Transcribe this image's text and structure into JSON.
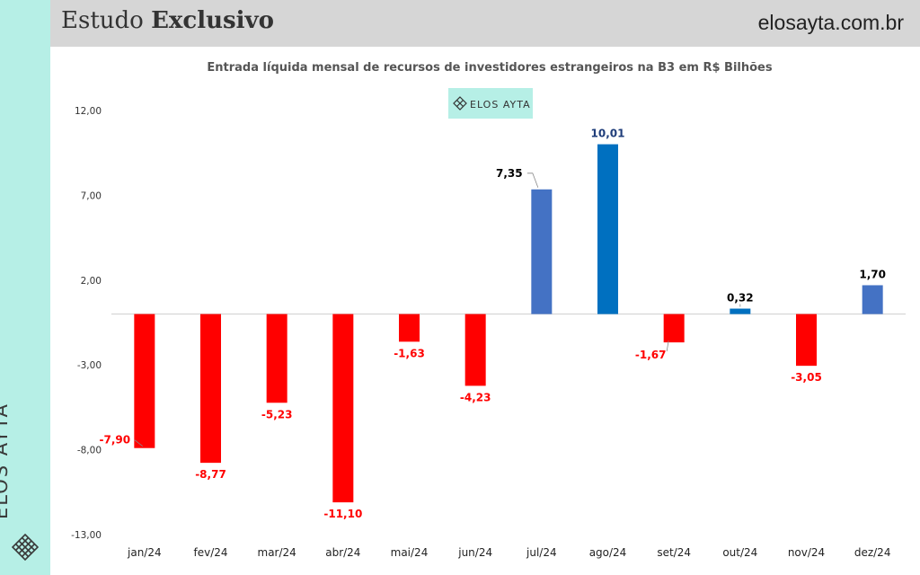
{
  "header": {
    "title_regular": "Estudo",
    "title_bold": "Exclusivo",
    "site": "elosayta.com.br"
  },
  "sidebar": {
    "brand": "ELOS AYTA",
    "logo_icon": "diamond-lattice-icon"
  },
  "badge": {
    "text": "ELOS AYTA",
    "icon": "diamond-lattice-icon"
  },
  "colors": {
    "header_bg": "#d6d6d6",
    "sidebar_bg": "#b6efe6",
    "badge_bg": "#b6efe6",
    "negative": "#ff0000",
    "positive_light": "#4472c4",
    "positive_dark": "#0070c0"
  },
  "chart_data": {
    "type": "bar",
    "title": "Entrada líquida mensal de recursos de investidores estrangeiros na B3 em R$ Bilhões",
    "categories": [
      "jan/24",
      "fev/24",
      "mar/24",
      "abr/24",
      "mai/24",
      "jun/24",
      "jul/24",
      "ago/24",
      "set/24",
      "out/24",
      "nov/24",
      "dez/24"
    ],
    "values": [
      -7.9,
      -8.77,
      -5.23,
      -11.1,
      -1.63,
      -4.23,
      7.35,
      10.01,
      -1.67,
      0.32,
      -3.05,
      1.7
    ],
    "value_labels": [
      "-7,90",
      "-8,77",
      "-5,23",
      "-11,10",
      "-1,63",
      "-4,23",
      "7,35",
      "10,01",
      "-1,67",
      "0,32",
      "-3,05",
      "1,70"
    ],
    "bar_colors": [
      "#ff0000",
      "#ff0000",
      "#ff0000",
      "#ff0000",
      "#ff0000",
      "#ff0000",
      "#4472c4",
      "#0070c0",
      "#ff0000",
      "#0070c0",
      "#ff0000",
      "#4472c4"
    ],
    "label_colors": [
      "#ff0000",
      "#ff0000",
      "#ff0000",
      "#ff0000",
      "#ff0000",
      "#ff0000",
      "#000000",
      "#1f3d7a",
      "#ff0000",
      "#000000",
      "#ff0000",
      "#000000"
    ],
    "yticks": [
      12,
      7,
      2,
      -3,
      -8,
      -13
    ],
    "ytick_labels": [
      "12,00",
      "7,00",
      "2,00",
      "-3,00",
      "-8,00",
      "-13,00"
    ],
    "ylim": [
      -13,
      12
    ],
    "grid": false,
    "legend": "none"
  }
}
